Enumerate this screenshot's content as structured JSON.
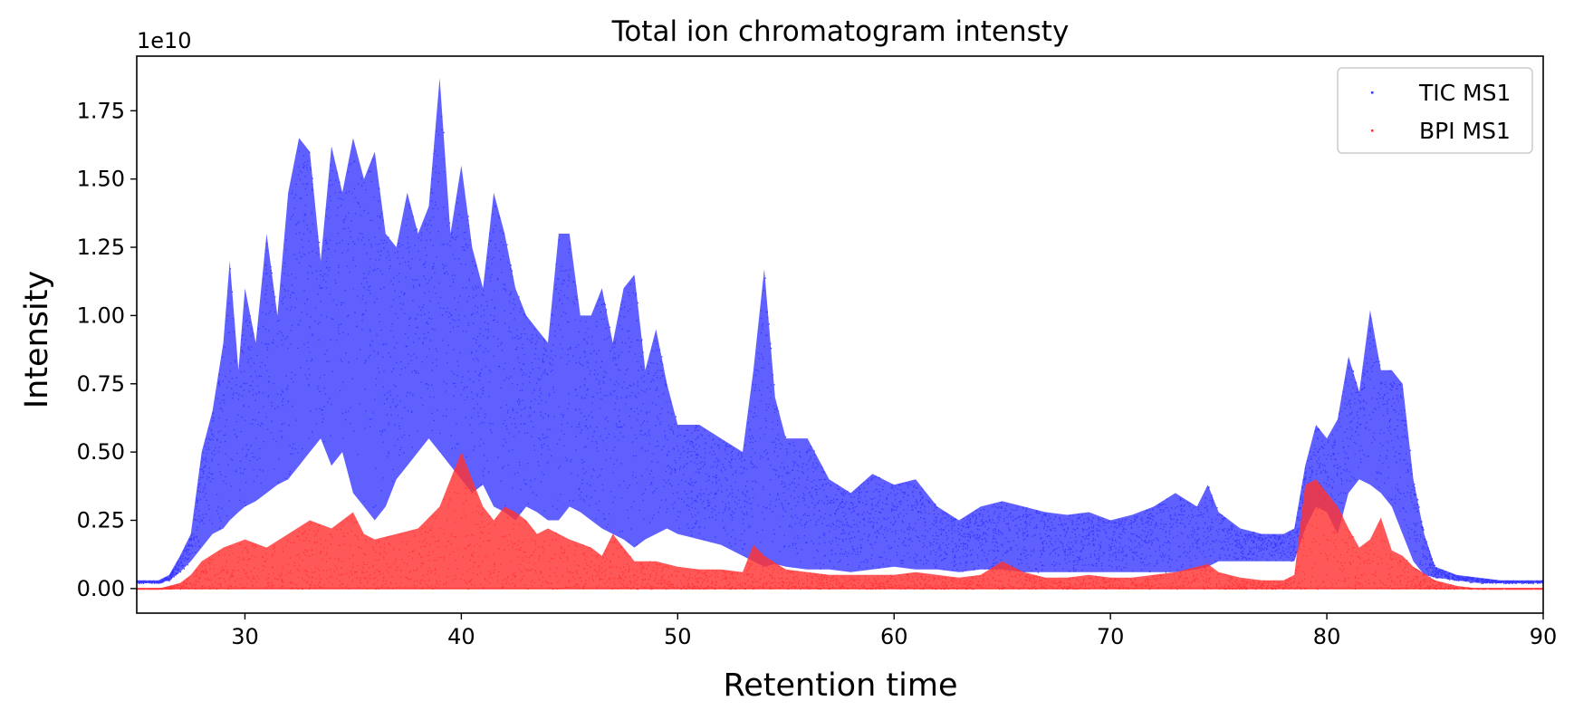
{
  "chart_data": {
    "type": "scatter",
    "title": "Total ion chromatogram intensty",
    "xlabel": "Retention time",
    "ylabel": "Intensity",
    "y_offset_label": "1e10",
    "xlim": [
      25,
      90
    ],
    "ylim": [
      -0.09,
      1.95
    ],
    "y_scale_factor": 10000000000.0,
    "x_ticks": [
      30,
      40,
      50,
      60,
      70,
      80,
      90
    ],
    "y_ticks": [
      0.0,
      0.25,
      0.5,
      0.75,
      1.0,
      1.25,
      1.5,
      1.75
    ],
    "x_tick_labels": [
      "30",
      "40",
      "50",
      "60",
      "70",
      "80",
      "90"
    ],
    "y_tick_labels": [
      "0.00",
      "0.25",
      "0.50",
      "0.75",
      "1.00",
      "1.25",
      "1.50",
      "1.75"
    ],
    "grid": false,
    "legend_position": "top-right",
    "series": [
      {
        "name": "TIC MS1",
        "color": "#3333ff",
        "envelope": {
          "x": [
            25,
            26,
            26.5,
            27,
            27.5,
            28,
            28.5,
            29,
            29.3,
            29.7,
            30,
            30.5,
            31,
            31.5,
            32,
            32.5,
            33,
            33.5,
            34,
            34.5,
            35,
            35.5,
            36,
            36.5,
            37,
            37.5,
            38,
            38.5,
            39,
            39.5,
            40,
            40.5,
            41,
            41.5,
            42,
            42.5,
            43,
            43.5,
            44,
            44.5,
            45,
            45.5,
            46,
            46.5,
            47,
            47.5,
            48,
            48.5,
            49,
            49.5,
            50,
            51,
            52,
            53,
            53.5,
            54,
            54.5,
            55,
            56,
            57,
            58,
            59,
            60,
            61,
            62,
            63,
            64,
            65,
            66,
            67,
            68,
            69,
            70,
            71,
            72,
            73,
            74,
            74.5,
            75,
            76,
            77,
            78,
            78.5,
            79,
            79.5,
            80,
            80.5,
            81,
            81.5,
            82,
            82.5,
            83,
            83.5,
            84,
            84.5,
            85,
            86,
            87,
            88,
            89,
            90
          ],
          "upper": [
            0.03,
            0.03,
            0.05,
            0.12,
            0.2,
            0.5,
            0.65,
            0.9,
            1.2,
            0.8,
            1.1,
            0.9,
            1.3,
            1.0,
            1.45,
            1.65,
            1.6,
            1.2,
            1.62,
            1.45,
            1.65,
            1.5,
            1.6,
            1.3,
            1.25,
            1.45,
            1.3,
            1.4,
            1.87,
            1.3,
            1.55,
            1.25,
            1.1,
            1.45,
            1.3,
            1.1,
            1.0,
            0.95,
            0.9,
            1.3,
            1.3,
            1.0,
            1.0,
            1.1,
            0.9,
            1.1,
            1.15,
            0.8,
            0.95,
            0.75,
            0.6,
            0.6,
            0.55,
            0.5,
            0.8,
            1.17,
            0.7,
            0.55,
            0.55,
            0.4,
            0.35,
            0.42,
            0.38,
            0.4,
            0.3,
            0.25,
            0.3,
            0.32,
            0.3,
            0.28,
            0.27,
            0.28,
            0.25,
            0.27,
            0.3,
            0.35,
            0.3,
            0.38,
            0.28,
            0.22,
            0.2,
            0.2,
            0.22,
            0.45,
            0.6,
            0.55,
            0.62,
            0.85,
            0.72,
            1.02,
            0.8,
            0.8,
            0.75,
            0.4,
            0.2,
            0.08,
            0.05,
            0.04,
            0.03,
            0.03,
            0.03
          ],
          "lower": [
            0.02,
            0.02,
            0.03,
            0.06,
            0.1,
            0.15,
            0.2,
            0.22,
            0.25,
            0.28,
            0.3,
            0.32,
            0.35,
            0.38,
            0.4,
            0.45,
            0.5,
            0.55,
            0.45,
            0.5,
            0.35,
            0.3,
            0.25,
            0.3,
            0.4,
            0.45,
            0.5,
            0.55,
            0.5,
            0.45,
            0.4,
            0.35,
            0.38,
            0.3,
            0.28,
            0.25,
            0.3,
            0.28,
            0.25,
            0.25,
            0.3,
            0.28,
            0.25,
            0.22,
            0.2,
            0.18,
            0.15,
            0.18,
            0.2,
            0.22,
            0.2,
            0.18,
            0.16,
            0.12,
            0.1,
            0.08,
            0.09,
            0.08,
            0.07,
            0.07,
            0.06,
            0.07,
            0.08,
            0.07,
            0.07,
            0.06,
            0.07,
            0.07,
            0.06,
            0.06,
            0.06,
            0.06,
            0.06,
            0.06,
            0.06,
            0.06,
            0.07,
            0.08,
            0.1,
            0.1,
            0.1,
            0.1,
            0.1,
            0.22,
            0.3,
            0.28,
            0.2,
            0.35,
            0.4,
            0.38,
            0.35,
            0.3,
            0.2,
            0.1,
            0.05,
            0.04,
            0.03,
            0.02,
            0.02,
            0.02,
            0.02
          ]
        }
      },
      {
        "name": "BPI MS1",
        "color": "#ff3333",
        "envelope": {
          "x": [
            25,
            26,
            26.5,
            27,
            27.5,
            28,
            29,
            30,
            31,
            32,
            33,
            34,
            34.5,
            35,
            35.5,
            36,
            37,
            38,
            39,
            39.5,
            40,
            40.5,
            41,
            41.5,
            42,
            42.5,
            43,
            43.5,
            44,
            45,
            46,
            46.5,
            47,
            48,
            49,
            50,
            51,
            52,
            53,
            53.5,
            54,
            55,
            56,
            57,
            58,
            59,
            60,
            61,
            62,
            63,
            64,
            65,
            66,
            67,
            68,
            69,
            70,
            71,
            72,
            73,
            74,
            74.5,
            75,
            76,
            77,
            78,
            78.5,
            79,
            79.5,
            80,
            80.5,
            81,
            81.5,
            82,
            82.5,
            83,
            83.5,
            84,
            85,
            86,
            87,
            88,
            89,
            90
          ],
          "upper": [
            0.0,
            0.0,
            0.01,
            0.02,
            0.05,
            0.1,
            0.15,
            0.18,
            0.15,
            0.2,
            0.25,
            0.22,
            0.25,
            0.28,
            0.2,
            0.18,
            0.2,
            0.22,
            0.3,
            0.4,
            0.5,
            0.4,
            0.3,
            0.25,
            0.3,
            0.28,
            0.25,
            0.2,
            0.22,
            0.18,
            0.15,
            0.12,
            0.2,
            0.1,
            0.1,
            0.08,
            0.07,
            0.07,
            0.06,
            0.16,
            0.12,
            0.07,
            0.06,
            0.05,
            0.05,
            0.05,
            0.05,
            0.06,
            0.05,
            0.04,
            0.05,
            0.1,
            0.06,
            0.04,
            0.04,
            0.05,
            0.04,
            0.04,
            0.05,
            0.06,
            0.08,
            0.09,
            0.06,
            0.04,
            0.03,
            0.03,
            0.05,
            0.38,
            0.4,
            0.35,
            0.3,
            0.22,
            0.15,
            0.18,
            0.26,
            0.14,
            0.12,
            0.08,
            0.03,
            0.01,
            0.0,
            0.0,
            0.0,
            0.0
          ],
          "lower": [
            0.0,
            0.0,
            0.0,
            0.0,
            0.0,
            0.0,
            0.0,
            0.0,
            0.0,
            0.0,
            0.0,
            0.0,
            0.0,
            0.0,
            0.0,
            0.0,
            0.0,
            0.0,
            0.0,
            0.0,
            0.0,
            0.0,
            0.0,
            0.0,
            0.0,
            0.0,
            0.0,
            0.0,
            0.0,
            0.0,
            0.0,
            0.0,
            0.0,
            0.0,
            0.0,
            0.0,
            0.0,
            0.0,
            0.0,
            0.0,
            0.0,
            0.0,
            0.0,
            0.0,
            0.0,
            0.0,
            0.0,
            0.0,
            0.0,
            0.0,
            0.0,
            0.0,
            0.0,
            0.0,
            0.0,
            0.0,
            0.0,
            0.0,
            0.0,
            0.0,
            0.0,
            0.0,
            0.0,
            0.0,
            0.0,
            0.0,
            0.0,
            0.0,
            0.0,
            0.0,
            0.0,
            0.0,
            0.0,
            0.0,
            0.0,
            0.0,
            0.0,
            0.0,
            0.0,
            0.0,
            0.0,
            0.0,
            0.0,
            0.0
          ]
        }
      }
    ]
  }
}
